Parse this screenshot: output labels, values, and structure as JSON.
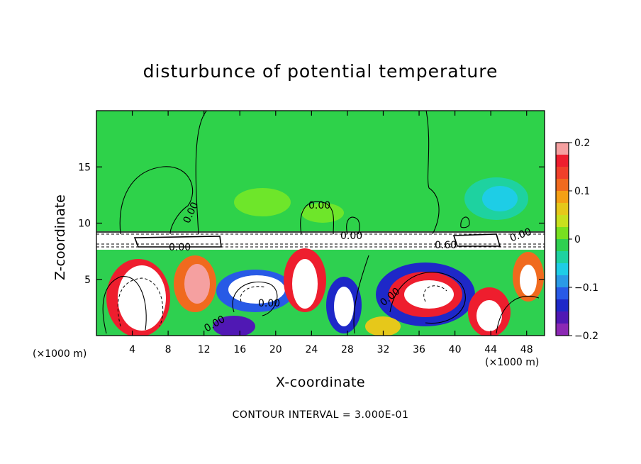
{
  "chart_data": {
    "type": "heatmap",
    "title": "disturbunce of potential temperature",
    "xlabel": "X-coordinate",
    "ylabel": "Z-coordinate",
    "x_unit_label": "(×1000 m)",
    "x_ticks": [
      4,
      8,
      12,
      16,
      20,
      24,
      28,
      32,
      36,
      40,
      44,
      48
    ],
    "y_ticks": [
      5,
      10,
      15
    ],
    "xlim": [
      0,
      50
    ],
    "ylim": [
      0,
      20
    ],
    "colorbar": {
      "ticks": [
        "0.2",
        "0.1",
        "0",
        "−0.1",
        "−0.2"
      ],
      "range": [
        -0.2,
        0.2
      ],
      "colors": [
        "#f5a0a0",
        "#ee1e2e",
        "#f0402a",
        "#f06a1e",
        "#f5a015",
        "#e6c81a",
        "#c8e01e",
        "#78e020",
        "#2ed050",
        "#1ed2a0",
        "#1ecde6",
        "#2a9ae6",
        "#285ae6",
        "#1e28c8",
        "#5018b4",
        "#8c28b4"
      ]
    },
    "contour_labels": [
      "0.00",
      "0.00",
      "0.00",
      "0.00",
      "0.00",
      "0.00",
      "0.00",
      "0.60",
      "0.00"
    ],
    "contour_interval_text": "CONTOUR INTERVAL = 3.000E-01",
    "grid": false
  }
}
